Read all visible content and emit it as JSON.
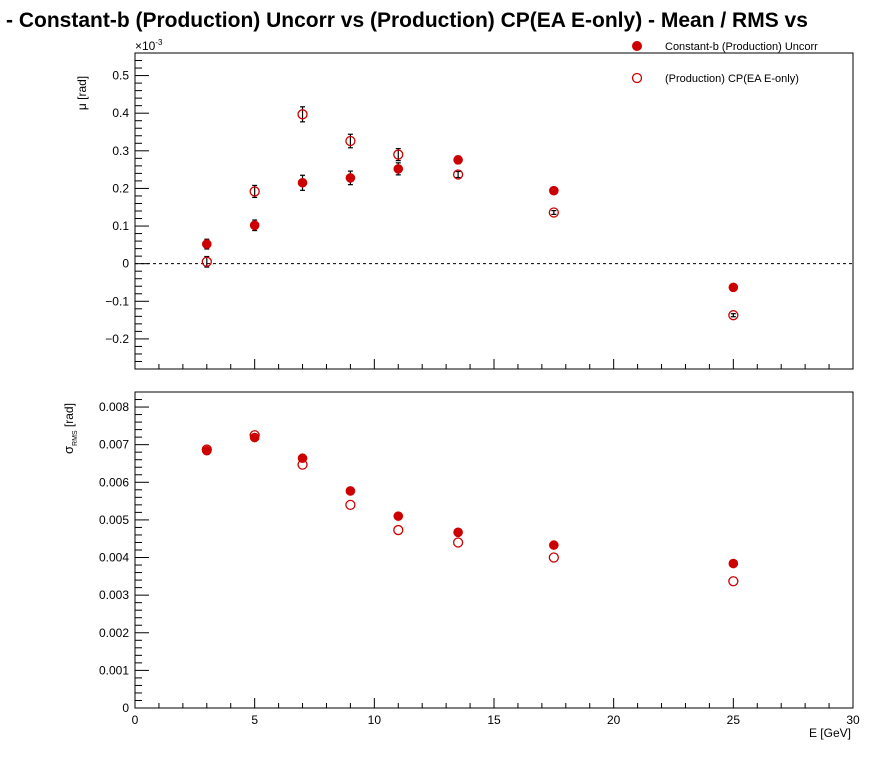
{
  "title": "-  Constant-b (Production) Uncorr vs (Production) CP(EA E-only)  -  Mean / RMS vs",
  "colors": {
    "series": "#cc0000",
    "errorbar": "#000000",
    "frame": "#000000"
  },
  "chart_data": [
    {
      "type": "scatter",
      "panel": "top",
      "ylabel": "μ  [rad]",
      "exponent_label": "×10",
      "exponent_power": "-3",
      "ylim": [
        -0.28,
        0.56
      ],
      "yticks": [
        -0.2,
        -0.1,
        0,
        0.1,
        0.2,
        0.3,
        0.4,
        0.5
      ],
      "ytick_labels": [
        "−0.2",
        "−0.1",
        "0",
        "0.1",
        "0.2",
        "0.3",
        "0.4",
        "0.5"
      ],
      "xlim": [
        0,
        30
      ],
      "reference_line": 0,
      "series": [
        {
          "name": "Constant-b (Production) Uncorr",
          "marker": "filled-circle",
          "x": [
            3,
            5,
            7,
            9,
            11,
            13.5,
            17.5,
            25
          ],
          "y": [
            0.052,
            0.102,
            0.215,
            0.228,
            0.252,
            0.276,
            0.194,
            -0.063
          ],
          "err": [
            0.013,
            0.014,
            0.02,
            0.018,
            0.016,
            0.01,
            0.006,
            0.004
          ]
        },
        {
          "name": "(Production) CP(EA E-only)",
          "marker": "open-circle",
          "x": [
            3,
            5,
            7,
            9,
            11,
            13.5,
            17.5,
            25
          ],
          "y": [
            0.005,
            0.192,
            0.397,
            0.326,
            0.29,
            0.237,
            0.136,
            -0.137
          ],
          "err": [
            0.014,
            0.016,
            0.02,
            0.018,
            0.016,
            0.008,
            0.005,
            0.004
          ]
        }
      ]
    },
    {
      "type": "scatter",
      "panel": "bottom",
      "ylabel": "σ",
      "ylabel_sub": "RMS",
      "ylabel_unit": "[rad]",
      "ylim": [
        0,
        0.0084
      ],
      "yticks": [
        0,
        0.001,
        0.002,
        0.003,
        0.004,
        0.005,
        0.006,
        0.007,
        0.008
      ],
      "ytick_labels": [
        "0",
        "0.001",
        "0.002",
        "0.003",
        "0.004",
        "0.005",
        "0.006",
        "0.007",
        "0.008"
      ],
      "xlim": [
        0,
        30
      ],
      "xticks": [
        0,
        5,
        10,
        15,
        20,
        25,
        30
      ],
      "xtick_labels": [
        "0",
        "5",
        "10",
        "15",
        "20",
        "25",
        "30"
      ],
      "xlabel": "E  [GeV]",
      "series": [
        {
          "name": "Constant-b (Production) Uncorr",
          "marker": "filled-circle",
          "x": [
            3,
            5,
            7,
            9,
            11,
            13.5,
            17.5,
            25
          ],
          "y": [
            0.00684,
            0.00719,
            0.00664,
            0.00577,
            0.0051,
            0.00467,
            0.00433,
            0.00384
          ]
        },
        {
          "name": "(Production) CP(EA E-only)",
          "marker": "open-circle",
          "x": [
            3,
            5,
            7,
            9,
            11,
            13.5,
            17.5,
            25
          ],
          "y": [
            0.00687,
            0.00725,
            0.00647,
            0.0054,
            0.00473,
            0.0044,
            0.004,
            0.00337
          ]
        }
      ]
    }
  ],
  "legend": {
    "entries": [
      {
        "label": "Constant-b (Production) Uncorr",
        "marker": "filled-circle"
      },
      {
        "label": "(Production) CP(EA E-only)",
        "marker": "open-circle"
      }
    ]
  }
}
